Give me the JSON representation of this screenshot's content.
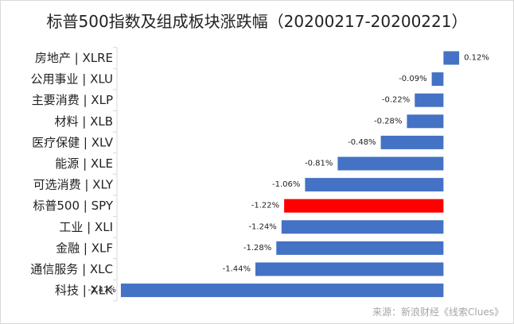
{
  "title": "标普500指数及组成板块涨跌幅（20200217-20200221）",
  "source": "来源：新浪财经《线索Clues》",
  "colors": {
    "bar_default": "#4472c4",
    "bar_highlight": "#ff0000",
    "axis": "#d9d9d9",
    "category_text": "#222222",
    "value_text": "#222222"
  },
  "chart_data": {
    "type": "bar",
    "orientation": "horizontal",
    "title": "标普500指数及组成板块涨跌幅（20200217-20200221）",
    "xlabel": "",
    "ylabel": "",
    "xlim": [
      -2.5,
      0.15
    ],
    "grid": false,
    "legend": "none",
    "highlight_category": "标普500 | SPY",
    "categories": [
      "房地产 | XLRE",
      "公用事业 | XLU",
      "主要消费 | XLP",
      "材料 | XLB",
      "医疗保健 | XLV",
      "能源 | XLE",
      "可选消费 | XLY",
      "标普500 | SPY",
      "工业 | XLI",
      "金融 | XLF",
      "通信服务 | XLC",
      "科技 | XLK"
    ],
    "values": [
      0.12,
      -0.09,
      -0.22,
      -0.28,
      -0.48,
      -0.81,
      -1.06,
      -1.22,
      -1.24,
      -1.28,
      -1.44,
      -2.47
    ],
    "value_labels": [
      "0.12%",
      "-0.09%",
      "-0.22%",
      "-0.28%",
      "-0.48%",
      "-0.81%",
      "-1.06%",
      "-1.22%",
      "-1.24%",
      "-1.28%",
      "-1.44%",
      "-2.47%"
    ]
  }
}
